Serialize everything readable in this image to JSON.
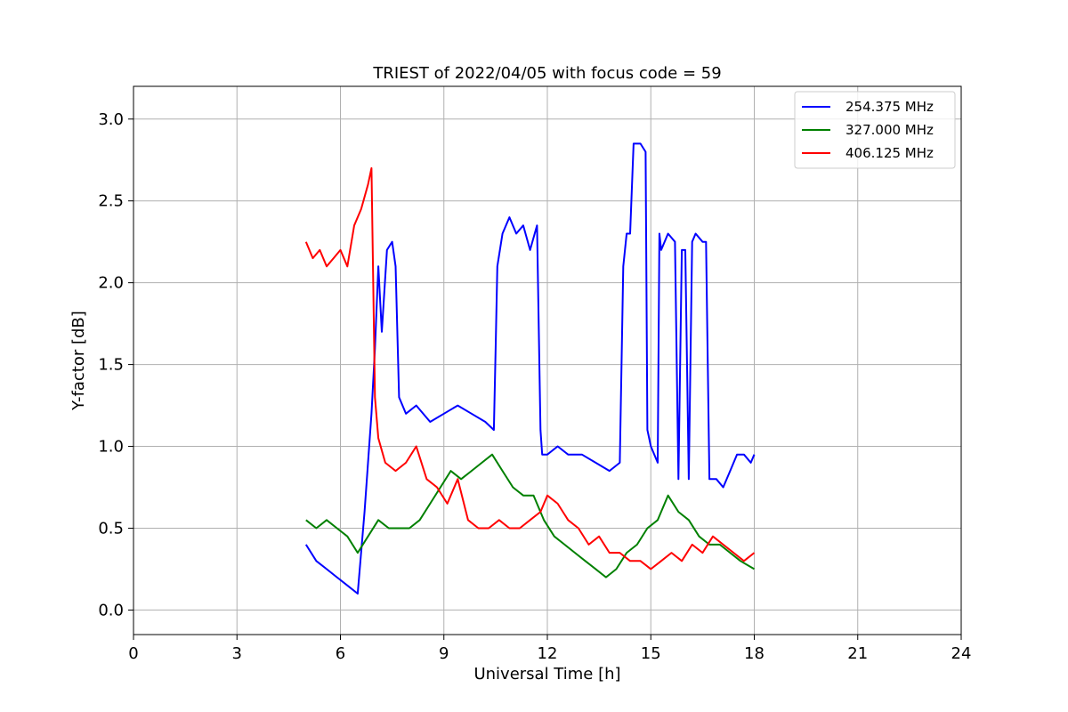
{
  "chart_data": {
    "type": "line",
    "title": "TRIEST of 2022/04/05 with focus code = 59",
    "xlabel": "Universal Time [h]",
    "ylabel": "Y-factor [dB]",
    "xlim": [
      0,
      24
    ],
    "ylim": [
      -0.15,
      3.2
    ],
    "xticks": [
      0,
      3,
      6,
      9,
      12,
      15,
      18,
      21,
      24
    ],
    "xtick_labels": [
      "0",
      "3",
      "6",
      "9",
      "12",
      "15",
      "18",
      "21",
      "24"
    ],
    "yticks": [
      0.0,
      0.5,
      1.0,
      1.5,
      2.0,
      2.5,
      3.0
    ],
    "ytick_labels": [
      "0.0",
      "0.5",
      "1.0",
      "1.5",
      "2.0",
      "2.5",
      "3.0"
    ],
    "grid": true,
    "legend_position": "top-right",
    "series": [
      {
        "name": "254.375 MHz",
        "color": "#0000ff",
        "x": [
          5.0,
          5.3,
          5.6,
          5.9,
          6.2,
          6.5,
          6.7,
          6.9,
          7.0,
          7.1,
          7.2,
          7.35,
          7.5,
          7.6,
          7.7,
          7.9,
          8.2,
          8.6,
          9.0,
          9.4,
          9.8,
          10.2,
          10.45,
          10.5,
          10.55,
          10.7,
          10.9,
          11.1,
          11.3,
          11.5,
          11.7,
          11.8,
          11.85,
          12.0,
          12.3,
          12.6,
          13.0,
          13.4,
          13.8,
          14.1,
          14.2,
          14.3,
          14.4,
          14.5,
          14.7,
          14.85,
          14.9,
          15.0,
          15.2,
          15.25,
          15.3,
          15.5,
          15.7,
          15.8,
          15.9,
          16.0,
          16.1,
          16.2,
          16.3,
          16.5,
          16.6,
          16.7,
          16.9,
          17.1,
          17.3,
          17.5,
          17.7,
          17.9,
          18.0
        ],
        "y": [
          0.4,
          0.3,
          0.25,
          0.2,
          0.15,
          0.1,
          0.6,
          1.2,
          1.6,
          2.1,
          1.7,
          2.2,
          2.25,
          2.1,
          1.3,
          1.2,
          1.25,
          1.15,
          1.2,
          1.25,
          1.2,
          1.15,
          1.1,
          1.6,
          2.1,
          2.3,
          2.4,
          2.3,
          2.35,
          2.2,
          2.35,
          1.1,
          0.95,
          0.95,
          1.0,
          0.95,
          0.95,
          0.9,
          0.85,
          0.9,
          2.1,
          2.3,
          2.3,
          2.85,
          2.85,
          2.8,
          1.1,
          1.0,
          0.9,
          2.3,
          2.2,
          2.3,
          2.25,
          0.8,
          2.2,
          2.2,
          0.8,
          2.25,
          2.3,
          2.25,
          2.25,
          0.8,
          0.8,
          0.75,
          0.85,
          0.95,
          0.95,
          0.9,
          0.95
        ]
      },
      {
        "name": "327.000 MHz",
        "color": "#008000",
        "x": [
          5.0,
          5.3,
          5.6,
          5.9,
          6.2,
          6.5,
          6.8,
          7.1,
          7.4,
          7.7,
          8.0,
          8.3,
          8.6,
          8.9,
          9.2,
          9.5,
          9.8,
          10.1,
          10.4,
          10.7,
          11.0,
          11.3,
          11.6,
          11.9,
          12.2,
          12.5,
          12.8,
          13.1,
          13.4,
          13.7,
          14.0,
          14.3,
          14.6,
          14.9,
          15.2,
          15.5,
          15.8,
          16.1,
          16.4,
          16.7,
          17.0,
          17.3,
          17.6,
          18.0
        ],
        "y": [
          0.55,
          0.5,
          0.55,
          0.5,
          0.45,
          0.35,
          0.45,
          0.55,
          0.5,
          0.5,
          0.5,
          0.55,
          0.65,
          0.75,
          0.85,
          0.8,
          0.85,
          0.9,
          0.95,
          0.85,
          0.75,
          0.7,
          0.7,
          0.55,
          0.45,
          0.4,
          0.35,
          0.3,
          0.25,
          0.2,
          0.25,
          0.35,
          0.4,
          0.5,
          0.55,
          0.7,
          0.6,
          0.55,
          0.45,
          0.4,
          0.4,
          0.35,
          0.3,
          0.25
        ]
      },
      {
        "name": "406.125 MHz",
        "color": "#ff0000",
        "x": [
          5.0,
          5.2,
          5.4,
          5.6,
          5.8,
          6.0,
          6.2,
          6.4,
          6.6,
          6.8,
          6.9,
          7.0,
          7.1,
          7.3,
          7.6,
          7.9,
          8.2,
          8.5,
          8.8,
          9.1,
          9.4,
          9.7,
          10.0,
          10.3,
          10.6,
          10.9,
          11.2,
          11.5,
          11.8,
          12.0,
          12.3,
          12.6,
          12.9,
          13.2,
          13.5,
          13.8,
          14.1,
          14.4,
          14.7,
          15.0,
          15.3,
          15.6,
          15.9,
          16.2,
          16.5,
          16.8,
          17.1,
          17.4,
          17.7,
          18.0
        ],
        "y": [
          2.25,
          2.15,
          2.2,
          2.1,
          2.15,
          2.2,
          2.1,
          2.35,
          2.45,
          2.6,
          2.7,
          1.3,
          1.05,
          0.9,
          0.85,
          0.9,
          1.0,
          0.8,
          0.75,
          0.65,
          0.8,
          0.55,
          0.5,
          0.5,
          0.55,
          0.5,
          0.5,
          0.55,
          0.6,
          0.7,
          0.65,
          0.55,
          0.5,
          0.4,
          0.45,
          0.35,
          0.35,
          0.3,
          0.3,
          0.25,
          0.3,
          0.35,
          0.3,
          0.4,
          0.35,
          0.45,
          0.4,
          0.35,
          0.3,
          0.35
        ]
      }
    ]
  }
}
